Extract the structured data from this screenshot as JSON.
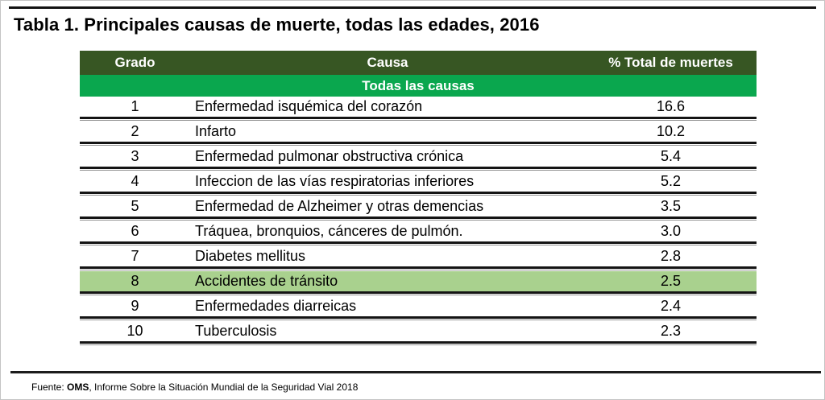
{
  "page": {
    "title": "Tabla 1. Principales causas de muerte, todas las edades, 2016"
  },
  "source": {
    "prefix": "Fuente: ",
    "org": "OMS",
    "rest": ",  Informe Sobre la Situación Mundial de la Seguridad Vial 2018"
  },
  "table": {
    "headers": {
      "rank": "Grado",
      "cause": "Causa",
      "pct": "% Total de muertes"
    },
    "subheader": "Todas las causas",
    "rows": [
      {
        "rank": "1",
        "cause": "Enfermedad isquémica del corazón",
        "pct": "16.6",
        "highlight": false
      },
      {
        "rank": "2",
        "cause": "Infarto",
        "pct": "10.2",
        "highlight": false
      },
      {
        "rank": "3",
        "cause": "Enfermedad pulmonar obstructiva crónica",
        "pct": "5.4",
        "highlight": false
      },
      {
        "rank": "4",
        "cause": "Infeccion de las vías respiratorias inferiores",
        "pct": "5.2",
        "highlight": false
      },
      {
        "rank": "5",
        "cause": "Enfermedad de Alzheimer y otras demencias",
        "pct": "3.5",
        "highlight": false
      },
      {
        "rank": "6",
        "cause": "Tráquea, bronquios, cánceres de pulmón.",
        "pct": "3.0",
        "highlight": false
      },
      {
        "rank": "7",
        "cause": "Diabetes mellitus",
        "pct": "2.8",
        "highlight": false
      },
      {
        "rank": "8",
        "cause": "Accidentes de tránsito",
        "pct": "2.5",
        "highlight": true
      },
      {
        "rank": "9",
        "cause": "Enfermedades diarreicas",
        "pct": "2.4",
        "highlight": false
      },
      {
        "rank": "10",
        "cause": "Tuberculosis",
        "pct": "2.3",
        "highlight": false
      }
    ]
  },
  "colors": {
    "header_bg": "#375623",
    "subheader_bg": "#0aa74e",
    "highlight_bg": "#a9d18e",
    "rule": "#141414"
  }
}
